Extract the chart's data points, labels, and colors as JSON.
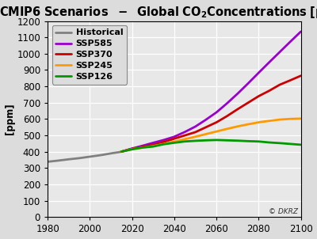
{
  "title_part1": "CMIP6 Scenarios  -  Global CO",
  "title_co2": "2",
  "title_part2": "Concentrations [ppm]",
  "ylabel": "[ppm]",
  "xlim": [
    1980,
    2100
  ],
  "ylim": [
    0,
    1200
  ],
  "yticks": [
    0,
    100,
    200,
    300,
    400,
    500,
    600,
    700,
    800,
    900,
    1000,
    1100,
    1200
  ],
  "xticks": [
    1980,
    2000,
    2020,
    2040,
    2060,
    2080,
    2100
  ],
  "background_color": "#dcdcdc",
  "plot_bg_color": "#e8e8e8",
  "series": {
    "Historical": {
      "color": "#808080",
      "years": [
        1980,
        1985,
        1990,
        1995,
        2000,
        2005,
        2010,
        2014,
        2015
      ],
      "values": [
        339,
        346,
        354,
        361,
        370,
        379,
        390,
        398,
        401
      ]
    },
    "SSP585": {
      "color": "#9900cc",
      "years": [
        2015,
        2020,
        2025,
        2030,
        2035,
        2040,
        2045,
        2050,
        2055,
        2060,
        2065,
        2070,
        2075,
        2080,
        2085,
        2090,
        2095,
        2100
      ],
      "values": [
        401,
        420,
        437,
        455,
        472,
        492,
        521,
        554,
        596,
        641,
        696,
        755,
        818,
        883,
        947,
        1010,
        1073,
        1135
      ]
    },
    "SSP370": {
      "color": "#cc0000",
      "years": [
        2015,
        2020,
        2025,
        2030,
        2035,
        2040,
        2045,
        2050,
        2055,
        2060,
        2065,
        2070,
        2075,
        2080,
        2085,
        2090,
        2095,
        2100
      ],
      "values": [
        401,
        418,
        430,
        443,
        460,
        480,
        500,
        520,
        550,
        580,
        618,
        660,
        700,
        740,
        773,
        810,
        837,
        865
      ]
    },
    "SSP245": {
      "color": "#ff9900",
      "years": [
        2015,
        2020,
        2025,
        2030,
        2035,
        2040,
        2045,
        2050,
        2055,
        2060,
        2065,
        2070,
        2075,
        2080,
        2085,
        2090,
        2095,
        2100
      ],
      "values": [
        401,
        416,
        425,
        435,
        448,
        462,
        477,
        492,
        508,
        524,
        540,
        555,
        568,
        580,
        589,
        597,
        601,
        603
      ]
    },
    "SSP126": {
      "color": "#009900",
      "years": [
        2015,
        2020,
        2025,
        2030,
        2035,
        2040,
        2045,
        2050,
        2055,
        2060,
        2065,
        2070,
        2075,
        2080,
        2085,
        2090,
        2095,
        2100
      ],
      "values": [
        401,
        415,
        426,
        432,
        446,
        455,
        463,
        467,
        470,
        472,
        470,
        468,
        465,
        463,
        457,
        453,
        448,
        443
      ]
    }
  },
  "legend_order": [
    "Historical",
    "SSP585",
    "SSP370",
    "SSP245",
    "SSP126"
  ],
  "watermark": "© DKRZ",
  "title_fontsize": 10.5,
  "axis_fontsize": 8.5,
  "legend_fontsize": 8,
  "tick_fontsize": 8.5,
  "xlabel_fontsize": 9
}
